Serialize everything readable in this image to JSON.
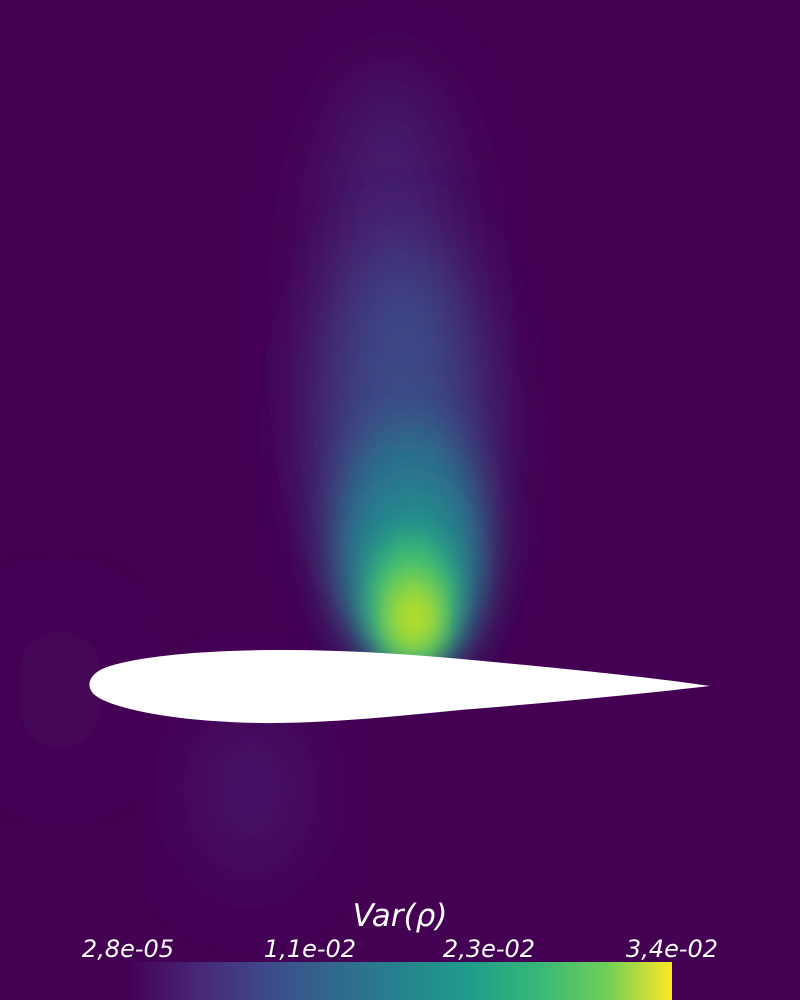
{
  "colorbar": {
    "title": "Var(ρ)",
    "ticks": [
      "2,8e-05",
      "1,1e-02",
      "2,3e-02",
      "3,4e-02"
    ],
    "colormap": "viridis",
    "colors": [
      "#440154",
      "#3b528b",
      "#21918c",
      "#5ec962",
      "#fde725"
    ]
  },
  "field": {
    "background_color": "#440154",
    "airfoil_color": "#ffffff"
  }
}
